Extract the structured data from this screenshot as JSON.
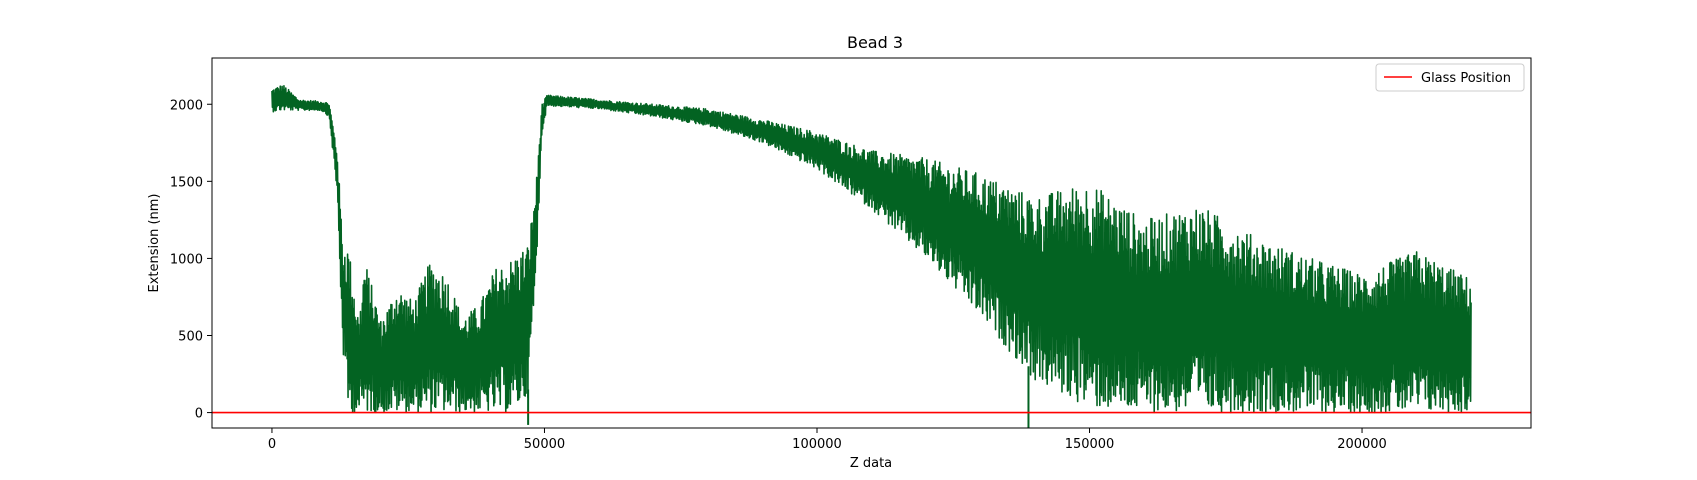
{
  "chart_data": {
    "type": "line",
    "title": "Bead 3",
    "xlabel": "Z data",
    "ylabel": "Extension (nm)",
    "xlim": [
      -11000,
      231000
    ],
    "ylim": [
      -100,
      2300
    ],
    "xticks": [
      0,
      50000,
      100000,
      150000,
      200000
    ],
    "xtick_labels": [
      "0",
      "50000",
      "100000",
      "150000",
      "200000"
    ],
    "yticks": [
      0,
      500,
      1000,
      1500,
      2000
    ],
    "ytick_labels": [
      "0",
      "500",
      "1000",
      "1500",
      "2000"
    ],
    "grid": false,
    "legend_position": "top-right",
    "series": [
      {
        "color": "#036322",
        "envelope": [
          {
            "x": 0,
            "low": 1950,
            "high": 2100
          },
          {
            "x": 2000,
            "low": 1960,
            "high": 2130
          },
          {
            "x": 5000,
            "low": 1960,
            "high": 2030
          },
          {
            "x": 9000,
            "low": 1960,
            "high": 2020
          },
          {
            "x": 10500,
            "low": 1920,
            "high": 2010
          },
          {
            "x": 12000,
            "low": 1400,
            "high": 1700
          },
          {
            "x": 13000,
            "low": 400,
            "high": 1100
          },
          {
            "x": 14000,
            "low": 0,
            "high": 1090
          },
          {
            "x": 16000,
            "low": 0,
            "high": 600
          },
          {
            "x": 17000,
            "low": 0,
            "high": 1000
          },
          {
            "x": 20000,
            "low": 0,
            "high": 600
          },
          {
            "x": 23000,
            "low": 0,
            "high": 820
          },
          {
            "x": 26000,
            "low": 0,
            "high": 720
          },
          {
            "x": 29000,
            "low": 0,
            "high": 980
          },
          {
            "x": 32000,
            "low": 0,
            "high": 900
          },
          {
            "x": 35000,
            "low": 0,
            "high": 620
          },
          {
            "x": 38000,
            "low": 0,
            "high": 700
          },
          {
            "x": 41000,
            "low": 0,
            "high": 940
          },
          {
            "x": 44000,
            "low": 0,
            "high": 1000
          },
          {
            "x": 47000,
            "low": 100,
            "high": 1100
          },
          {
            "x": 48500,
            "low": 900,
            "high": 1500
          },
          {
            "x": 49500,
            "low": 1800,
            "high": 2000
          },
          {
            "x": 50500,
            "low": 1990,
            "high": 2060
          },
          {
            "x": 60000,
            "low": 1970,
            "high": 2030
          },
          {
            "x": 70000,
            "low": 1920,
            "high": 2000
          },
          {
            "x": 80000,
            "low": 1860,
            "high": 1970
          },
          {
            "x": 90000,
            "low": 1750,
            "high": 1900
          },
          {
            "x": 100000,
            "low": 1580,
            "high": 1820
          },
          {
            "x": 110000,
            "low": 1320,
            "high": 1700
          },
          {
            "x": 120000,
            "low": 1000,
            "high": 1650
          },
          {
            "x": 130000,
            "low": 620,
            "high": 1550
          },
          {
            "x": 140000,
            "low": 200,
            "high": 1400
          },
          {
            "x": 150000,
            "low": 30,
            "high": 1500
          },
          {
            "x": 160000,
            "low": 0,
            "high": 1250
          },
          {
            "x": 170000,
            "low": 0,
            "high": 1350
          },
          {
            "x": 180000,
            "low": 0,
            "high": 1150
          },
          {
            "x": 190000,
            "low": 0,
            "high": 1010
          },
          {
            "x": 200000,
            "low": 0,
            "high": 900
          },
          {
            "x": 210000,
            "low": 0,
            "high": 1050
          },
          {
            "x": 220000,
            "low": 0,
            "high": 870
          }
        ],
        "spikes": [
          {
            "x": 47000,
            "y": -80
          },
          {
            "x": 138800,
            "y": -110
          }
        ]
      }
    ],
    "reference_line": {
      "name": "Glass Position",
      "y": 0,
      "color": "#ff0000"
    }
  }
}
